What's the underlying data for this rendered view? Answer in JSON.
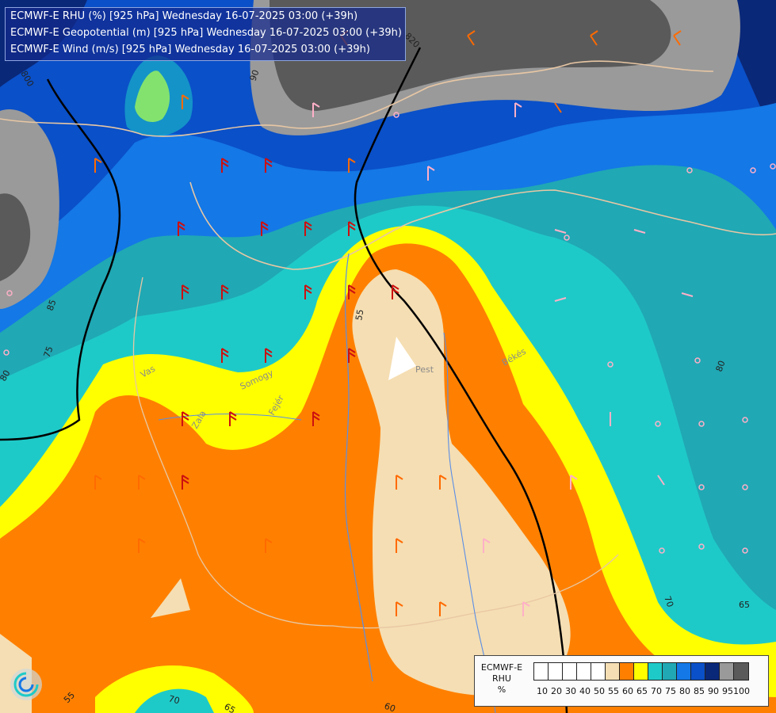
{
  "titles": [
    "ECMWF-E RHU (%) [925 hPa] Wednesday 16-07-2025 03:00 (+39h)",
    "ECMWF-E Geopotential (m) [925 hPa] Wednesday 16-07-2025 03:00 (+39h)",
    "ECMWF-E Wind (m/s) [925 hPa] Wednesday 16-07-2025 03:00 (+39h)"
  ],
  "legend": {
    "title_line1": "ECMWF-E",
    "title_line2": "RHU",
    "title_line3": "%",
    "levels": [
      "10",
      "20",
      "30",
      "40",
      "50",
      "55",
      "60",
      "65",
      "70",
      "75",
      "80",
      "85",
      "90",
      "95",
      "100"
    ],
    "colors": [
      "#ffffff",
      "#ffffff",
      "#ffffff",
      "#ffffff",
      "#ffffff",
      "#f5deb3",
      "#ff8000",
      "#ffff00",
      "#1ecac8",
      "#20a8b4",
      "#1478e6",
      "#0a50c8",
      "#0a2878",
      "#9a9a9a",
      "#5a5a5a"
    ]
  },
  "contour_labels": [
    "800",
    "90",
    "85",
    "75",
    "80",
    "55",
    "80",
    "70",
    "65",
    "55",
    "70",
    "65",
    "60",
    "820"
  ],
  "place_labels": [
    "Pest",
    "Békés",
    "Vas",
    "Somogy",
    "Fejér",
    "Zala"
  ]
}
